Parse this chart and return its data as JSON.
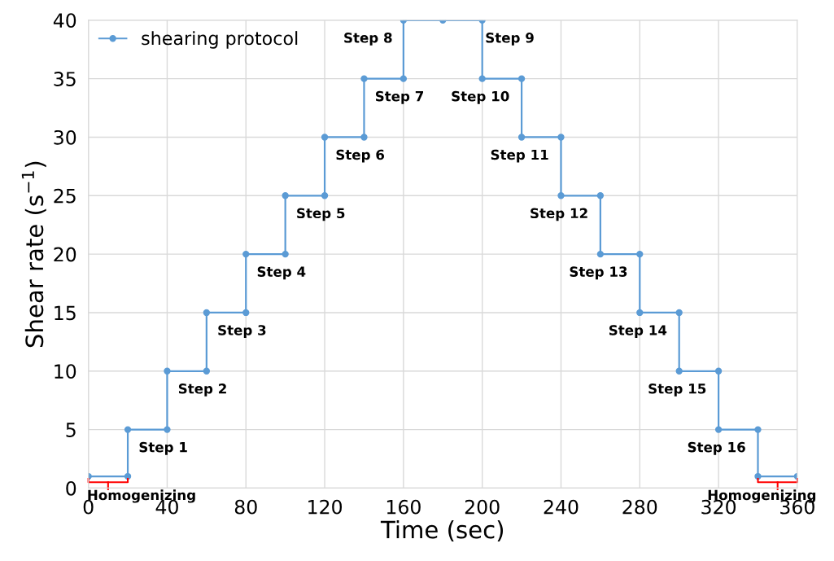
{
  "chart_data": {
    "type": "line",
    "xlabel": "Time (sec)",
    "ylabel": "Shear rate (s$^{−1}$)",
    "x": [
      0,
      20,
      20,
      40,
      40,
      60,
      60,
      80,
      80,
      100,
      100,
      120,
      120,
      140,
      140,
      160,
      160,
      180,
      200,
      200,
      220,
      220,
      240,
      240,
      260,
      260,
      280,
      280,
      300,
      300,
      320,
      320,
      340,
      340,
      360
    ],
    "series": [
      {
        "name": "shearing protocol",
        "color": "#5b9bd5",
        "values": [
          1,
          1,
          5,
          5,
          10,
          10,
          15,
          15,
          20,
          20,
          25,
          25,
          30,
          30,
          35,
          35,
          40,
          40,
          40,
          35,
          35,
          30,
          30,
          25,
          25,
          20,
          20,
          15,
          15,
          10,
          10,
          5,
          5,
          1,
          1
        ]
      }
    ],
    "xlim": [
      0,
      360
    ],
    "xticks": [
      0,
      40,
      80,
      120,
      160,
      200,
      240,
      280,
      320,
      360
    ],
    "ylim": [
      0,
      40
    ],
    "yticks": [
      0,
      5,
      10,
      15,
      20,
      25,
      30,
      35,
      40
    ],
    "grid": true,
    "legend": "top left",
    "marker": "circle",
    "line_style": "solid",
    "annotations": [
      "Step 1",
      "Step 2",
      "Step 3",
      "Step 4",
      "Step 5",
      "Step 6",
      "Step 7",
      "Step 8",
      "Step 9",
      "Step 10",
      "Step 11",
      "Step 12",
      "Step 13",
      "Step 14",
      "Step 15",
      "Step 16",
      "Homogenizing",
      "Homogenizing"
    ]
  }
}
